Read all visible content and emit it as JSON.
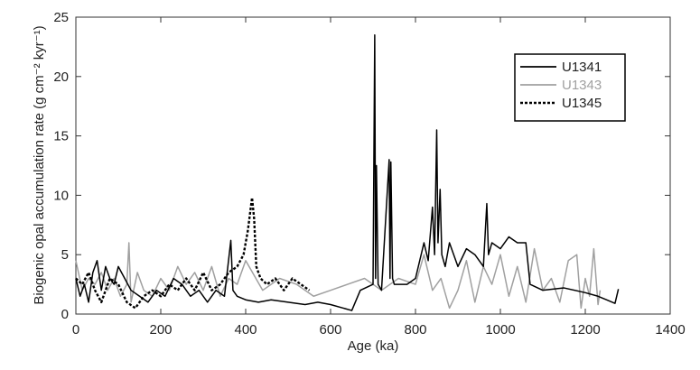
{
  "chart_data": {
    "type": "line",
    "xlabel": "Age (ka)",
    "ylabel": "Biogenic opal accumulation rate (g cm⁻² kyr⁻¹)",
    "xlim": [
      0,
      1400
    ],
    "xticks": [
      0,
      200,
      400,
      600,
      800,
      1000,
      1200,
      1400
    ],
    "ylim": [
      0,
      25
    ],
    "yticks": [
      0,
      5,
      10,
      15,
      20,
      25
    ],
    "grid": false,
    "legend": "upper right",
    "series": [
      {
        "name": "U1341",
        "color": "#000000",
        "dash": "solid",
        "x": [
          0,
          10,
          20,
          30,
          40,
          50,
          60,
          70,
          80,
          90,
          100,
          115,
          130,
          150,
          170,
          190,
          210,
          230,
          250,
          270,
          290,
          310,
          330,
          350,
          365,
          370,
          380,
          400,
          430,
          460,
          500,
          540,
          570,
          600,
          630,
          650,
          670,
          700,
          704,
          706,
          708,
          712,
          720,
          738,
          740,
          742,
          746,
          750,
          780,
          800,
          810,
          820,
          830,
          840,
          845,
          850,
          853,
          858,
          862,
          870,
          880,
          900,
          920,
          940,
          960,
          968,
          972,
          980,
          1000,
          1020,
          1040,
          1060,
          1070,
          1100,
          1150,
          1200,
          1230,
          1250,
          1270,
          1278
        ],
        "values": [
          3,
          1.5,
          2.5,
          1,
          3.5,
          4.5,
          2,
          4,
          3,
          2.5,
          4,
          3,
          2,
          1.5,
          1,
          2,
          1.5,
          3,
          2.5,
          1.5,
          2,
          1,
          2,
          1.5,
          6.2,
          2,
          1.5,
          1.2,
          1,
          1.2,
          1,
          0.8,
          1,
          0.8,
          0.5,
          0.3,
          2,
          2.5,
          23.5,
          3,
          12.5,
          2.5,
          2,
          13,
          3,
          12.8,
          3,
          2.5,
          2.5,
          3,
          4.5,
          6,
          4.5,
          9,
          5,
          15.5,
          6,
          10.5,
          5,
          4,
          6,
          4,
          5.5,
          5,
          4,
          9.3,
          5,
          6,
          5.5,
          6.5,
          6,
          6,
          2.5,
          2,
          2.2,
          1.8,
          1.5,
          1.2,
          0.9,
          2.1
        ]
      },
      {
        "name": "U1343",
        "color": "#a0a0a0",
        "dash": "solid",
        "x": [
          0,
          15,
          30,
          45,
          60,
          75,
          90,
          105,
          120,
          125,
          130,
          145,
          160,
          180,
          200,
          220,
          240,
          260,
          280,
          300,
          320,
          340,
          360,
          380,
          400,
          440,
          480,
          520,
          560,
          600,
          640,
          680,
          720,
          760,
          800,
          820,
          840,
          860,
          880,
          900,
          920,
          940,
          960,
          980,
          1000,
          1020,
          1040,
          1060,
          1080,
          1100,
          1120,
          1140,
          1160,
          1180,
          1190,
          1200,
          1210,
          1220,
          1230,
          1235
        ],
        "values": [
          4.5,
          2,
          3,
          2.5,
          3.5,
          2,
          3,
          1.5,
          2.5,
          6,
          1,
          3.5,
          2,
          1.5,
          3,
          2,
          4,
          2.5,
          3.5,
          2,
          4,
          1.5,
          3,
          2.5,
          4.5,
          2,
          3,
          2.5,
          1.5,
          2,
          2.5,
          3,
          2,
          3,
          2.5,
          5,
          2,
          3,
          0.5,
          2,
          4.5,
          1,
          4,
          2.5,
          5,
          1.5,
          4,
          1,
          5.5,
          2,
          3,
          1,
          4.5,
          5,
          0.5,
          3,
          1.5,
          5.5,
          0.8,
          2
        ]
      },
      {
        "name": "U1345",
        "color": "#000000",
        "dash": "dashed",
        "x": [
          0,
          15,
          30,
          45,
          60,
          80,
          100,
          120,
          140,
          160,
          180,
          200,
          220,
          240,
          260,
          280,
          300,
          320,
          340,
          360,
          380,
          395,
          405,
          415,
          420,
          425,
          435,
          450,
          470,
          490,
          510,
          530,
          550
        ],
        "values": [
          3,
          2.5,
          3.5,
          2,
          1,
          3,
          2.5,
          1,
          0.5,
          1.5,
          2,
          1.5,
          2.5,
          2,
          3,
          2,
          3.5,
          2,
          2.5,
          3.5,
          4,
          5,
          7,
          9.8,
          8,
          4,
          3,
          2.5,
          3,
          2,
          3,
          2.5,
          2
        ]
      }
    ]
  }
}
